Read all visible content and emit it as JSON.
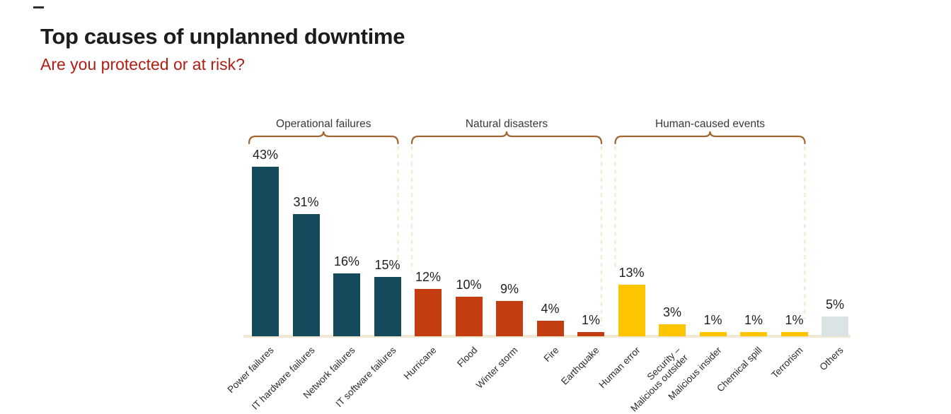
{
  "header": {
    "title": "Top causes of unplanned downtime",
    "subtitle": "Are you protected or at risk?"
  },
  "colors": {
    "title_text": "#1c1c1c",
    "subtitle_text": "#b01e13",
    "operational": "#15495c",
    "natural": "#c33d10",
    "human": "#fdc500",
    "others": "#dbe4e5",
    "bracket": "#a2672f",
    "dashed_divider": "#f4ecd4",
    "axis_line": "#f0e8d2",
    "value_label": "#1f1f1f",
    "category_label": "#2b2b2b"
  },
  "chart_data": {
    "type": "bar",
    "title": "Top causes of unplanned downtime",
    "subtitle": "Are you protected or at risk?",
    "unit": "%",
    "ylim": [
      0,
      45
    ],
    "grid": false,
    "value_labels_shown": true,
    "legend_position": "none",
    "xlabel": "",
    "ylabel": "",
    "groups": [
      {
        "label": "Operational failures",
        "color_key": "operational",
        "from": 0,
        "to": 3
      },
      {
        "label": "Natural disasters",
        "color_key": "natural",
        "from": 4,
        "to": 8
      },
      {
        "label": "Human-caused events",
        "color_key": "human",
        "from": 9,
        "to": 13
      }
    ],
    "bars": [
      {
        "category": "Power failures",
        "value": 43,
        "value_label": "43%",
        "color_key": "operational"
      },
      {
        "category": "IT hardware failures",
        "value": 31,
        "value_label": "31%",
        "color_key": "operational"
      },
      {
        "category": "Network failures",
        "value": 16,
        "value_label": "16%",
        "color_key": "operational"
      },
      {
        "category": "IT software failures",
        "value": 15,
        "value_label": "15%",
        "color_key": "operational"
      },
      {
        "category": "Hurricane",
        "value": 12,
        "value_label": "12%",
        "color_key": "natural"
      },
      {
        "category": "Flood",
        "value": 10,
        "value_label": "10%",
        "color_key": "natural"
      },
      {
        "category": "Winter storm",
        "value": 9,
        "value_label": "9%",
        "color_key": "natural"
      },
      {
        "category": "Fire",
        "value": 4,
        "value_label": "4%",
        "color_key": "natural"
      },
      {
        "category": "Earthquake",
        "value": 1,
        "value_label": "1%",
        "color_key": "natural"
      },
      {
        "category": "Human error",
        "value": 13,
        "value_label": "13%",
        "color_key": "human"
      },
      {
        "category": "Security –\nMalicious outsider",
        "value": 3,
        "value_label": "3%",
        "color_key": "human"
      },
      {
        "category": "Malicious insider",
        "value": 1,
        "value_label": "1%",
        "color_key": "human"
      },
      {
        "category": "Chemical spill",
        "value": 1,
        "value_label": "1%",
        "color_key": "human"
      },
      {
        "category": "Terrorism",
        "value": 1,
        "value_label": "1%",
        "color_key": "human"
      },
      {
        "category": "Others",
        "value": 5,
        "value_label": "5%",
        "color_key": "others"
      }
    ]
  }
}
